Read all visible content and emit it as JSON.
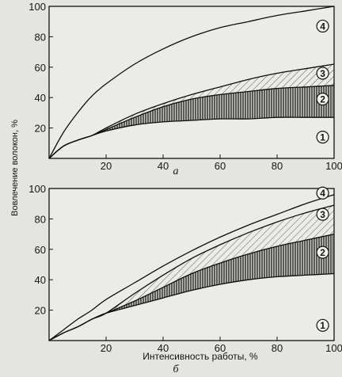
{
  "ylabel": "Вовлечение волокон, %",
  "xlabel": "Интенсивность работы, %",
  "chart_data": [
    {
      "type": "area",
      "panel_label": "а",
      "xlim": [
        0,
        100
      ],
      "ylim": [
        0,
        100
      ],
      "x_ticks": [
        "20",
        "40",
        "60",
        "80",
        "100"
      ],
      "y_ticks": [
        "20",
        "40",
        "60",
        "80",
        "100"
      ],
      "series": [
        {
          "x": [
            0,
            5,
            10,
            15,
            20,
            30,
            40,
            50,
            60,
            70,
            80,
            90,
            100
          ],
          "y": [
            0,
            17,
            30,
            41,
            49,
            62,
            72,
            80,
            86,
            90,
            94,
            97,
            100
          ]
        },
        {
          "x": [
            0,
            5,
            10,
            15,
            20,
            30,
            40,
            50,
            60,
            70,
            80,
            90,
            100
          ],
          "y": [
            0,
            8,
            12,
            15,
            20,
            29,
            36,
            42,
            47,
            52,
            56,
            59,
            62
          ]
        },
        {
          "x": [
            0,
            5,
            10,
            15,
            20,
            30,
            40,
            50,
            60,
            70,
            80,
            90,
            100
          ],
          "y": [
            0,
            8,
            12,
            15,
            19,
            27,
            34,
            39,
            42,
            44,
            46,
            47,
            48
          ]
        },
        {
          "x": [
            0,
            5,
            10,
            15,
            20,
            30,
            40,
            50,
            60,
            70,
            80,
            90,
            100
          ],
          "y": [
            0,
            8,
            12,
            15,
            18,
            22,
            24,
            25,
            26,
            26,
            27,
            27,
            27
          ]
        }
      ],
      "zones": [
        {
          "label": "4",
          "x": 96,
          "y": 87
        },
        {
          "label": "3",
          "x": 96,
          "y": 56
        },
        {
          "label": "2",
          "x": 96,
          "y": 39
        },
        {
          "label": "1",
          "x": 96,
          "y": 14
        }
      ]
    },
    {
      "type": "area",
      "panel_label": "б",
      "xlim": [
        0,
        100
      ],
      "ylim": [
        0,
        100
      ],
      "x_ticks": [
        "20",
        "40",
        "60",
        "80",
        "100"
      ],
      "y_ticks": [
        "20",
        "40",
        "60",
        "80",
        "100"
      ],
      "series": [
        {
          "x": [
            0,
            5,
            10,
            15,
            20,
            30,
            40,
            50,
            60,
            70,
            80,
            90,
            100
          ],
          "y": [
            0,
            7,
            14,
            20,
            27,
            38,
            49,
            59,
            68,
            76,
            83,
            90,
            96
          ]
        },
        {
          "x": [
            0,
            5,
            10,
            15,
            20,
            30,
            40,
            50,
            60,
            70,
            80,
            90,
            100
          ],
          "y": [
            0,
            5,
            9,
            14,
            18,
            31,
            43,
            54,
            63,
            71,
            78,
            84,
            89
          ]
        },
        {
          "x": [
            0,
            5,
            10,
            15,
            20,
            30,
            40,
            50,
            60,
            70,
            80,
            90,
            100
          ],
          "y": [
            0,
            5,
            9,
            14,
            18,
            26,
            35,
            44,
            51,
            57,
            62,
            66,
            70
          ]
        },
        {
          "x": [
            0,
            5,
            10,
            15,
            20,
            30,
            40,
            50,
            60,
            70,
            80,
            90,
            100
          ],
          "y": [
            0,
            5,
            9,
            14,
            18,
            23,
            28,
            33,
            37,
            40,
            42,
            43,
            44
          ]
        }
      ],
      "zones": [
        {
          "label": "4",
          "x": 96,
          "y": 97
        },
        {
          "label": "3",
          "x": 96,
          "y": 83
        },
        {
          "label": "2",
          "x": 96,
          "y": 58
        },
        {
          "label": "1",
          "x": 96,
          "y": 10
        }
      ]
    }
  ]
}
